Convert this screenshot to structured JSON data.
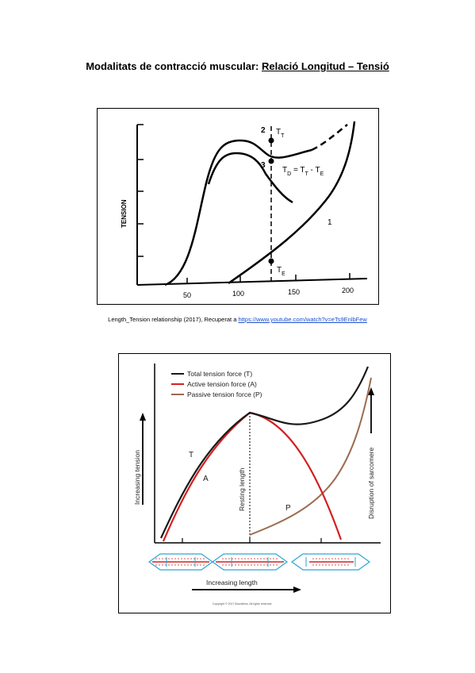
{
  "page": {
    "title_prefix": "Modalitats de contracció muscular: ",
    "title_emphasis": "Relació Longitud – Tensió"
  },
  "figure1": {
    "y_axis_label": "TENSION",
    "x_ticks": [
      "50",
      "100",
      "150",
      "200"
    ],
    "point_labels": [
      "2",
      "3",
      "1"
    ],
    "tt_label": "T",
    "tt_sub": "T",
    "td_label": "T",
    "td_sub": "D",
    "td_eq": " = T",
    "td_eq_sub1": "T",
    "td_eq_minus": " - T",
    "td_eq_sub2": "E",
    "te_label": "T",
    "te_sub": "E"
  },
  "caption": {
    "text": "Length_Tension relationship (2017), Recuperat a ",
    "link": "https://www.youtube.com/watch?v=eTs9EnlbFew"
  },
  "figure2": {
    "legend": [
      {
        "label": "Total tension force (T)",
        "color": "#1a1a1a"
      },
      {
        "label": "Active tension force (A)",
        "color": "#d42020"
      },
      {
        "label": "Passive tension force (P)",
        "color": "#9c6b4e"
      }
    ],
    "y_axis_label": "Increasing tension",
    "x_axis_label": "Increasing length",
    "curve_T_label": "T",
    "curve_A_label": "A",
    "curve_P_label": "P",
    "resting_label": "Resting length",
    "disruption_label": "Disruption of sarcomere",
    "copyright": "Copyright © 2017 Boundless. All rights reserved."
  }
}
